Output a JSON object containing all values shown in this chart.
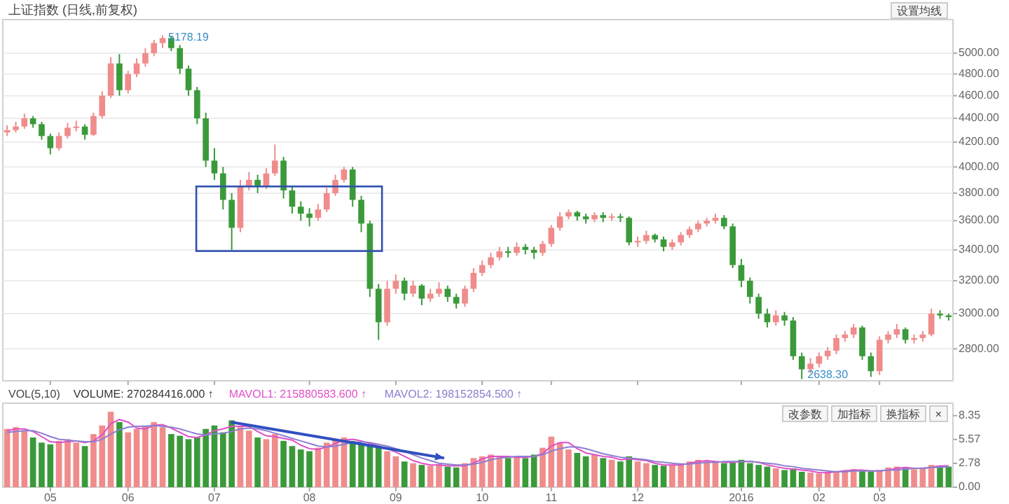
{
  "chart_data": [
    {
      "type": "candlestick",
      "title": "上证指数 (日线,前复权)",
      "log": true,
      "grid": "y",
      "tick_labels": "y",
      "ylim": [
        2630,
        5340
      ],
      "yticks": [
        {
          "value": 2800,
          "label": "2800.00"
        },
        {
          "value": 3000,
          "label": "3000.00"
        },
        {
          "value": 3200,
          "label": "3200.00"
        },
        {
          "value": 3400,
          "label": "3400.00"
        },
        {
          "value": 3600,
          "label": "3600.00"
        },
        {
          "value": 3800,
          "label": "3800.00"
        },
        {
          "value": 4000,
          "label": "4000.00"
        },
        {
          "value": 4200,
          "label": "4200.00"
        },
        {
          "value": 4400,
          "label": "4400.00"
        },
        {
          "value": 4600,
          "label": "4600.00"
        },
        {
          "value": 4800,
          "label": "4800.00"
        },
        {
          "value": 5000,
          "label": "5000.00"
        }
      ],
      "annotations": [
        "5178.19",
        "2638.30",
        "设置均线"
      ],
      "categories": [
        null,
        null,
        null,
        null,
        null,
        "05",
        null,
        null,
        null,
        null,
        null,
        null,
        null,
        null,
        "06",
        null,
        null,
        null,
        null,
        null,
        null,
        null,
        null,
        null,
        "07",
        null,
        null,
        null,
        null,
        null,
        null,
        null,
        null,
        null,
        null,
        "08",
        null,
        null,
        null,
        null,
        null,
        null,
        null,
        null,
        null,
        "09",
        null,
        null,
        null,
        null,
        null,
        null,
        null,
        null,
        null,
        "10",
        null,
        null,
        null,
        null,
        null,
        null,
        null,
        "11",
        null,
        null,
        null,
        null,
        null,
        null,
        null,
        null,
        null,
        "12",
        null,
        null,
        null,
        null,
        null,
        null,
        null,
        null,
        null,
        null,
        null,
        "2016",
        null,
        null,
        null,
        null,
        null,
        null,
        null,
        null,
        "02",
        null,
        null,
        null,
        null,
        null,
        null,
        "03",
        null,
        null,
        null,
        null,
        null,
        null,
        null,
        null
      ],
      "colors": [
        "#f08c8c",
        "#f08c8c",
        "#f08c8c",
        "#3a9a3a",
        "#3a9a3a",
        "#3a9a3a",
        "#f08c8c",
        "#f08c8c",
        "#f08c8c",
        "#3a9a3a",
        "#f08c8c",
        "#f08c8c",
        "#f08c8c",
        "#3a9a3a",
        "#f08c8c",
        "#f08c8c",
        "#f08c8c",
        "#f08c8c",
        "#f08c8c",
        "#3a9a3a",
        "#3a9a3a",
        "#3a9a3a",
        "#3a9a3a",
        "#3a9a3a",
        "#3a9a3a",
        "#3a9a3a",
        "#3a9a3a",
        "#f08c8c",
        "#f08c8c",
        "#3a9a3a",
        "#f08c8c",
        "#f08c8c",
        "#3a9a3a",
        "#3a9a3a",
        "#3a9a3a",
        "#3a9a3a",
        "#f08c8c",
        "#f08c8c",
        "#f08c8c",
        "#f08c8c",
        "#3a9a3a",
        "#3a9a3a",
        "#3a9a3a",
        "#3a9a3a",
        "#f08c8c",
        "#f08c8c",
        "#3a9a3a",
        "#f08c8c",
        "#3a9a3a",
        "#f08c8c",
        "#f08c8c",
        "#3a9a3a",
        "#3a9a3a",
        "#f08c8c",
        "#f08c8c",
        "#f08c8c",
        "#f08c8c",
        "#f08c8c",
        "#3a9a3a",
        "#f08c8c",
        "#3a9a3a",
        "#3a9a3a",
        "#f08c8c",
        "#f08c8c",
        "#f08c8c",
        "#f08c8c",
        "#3a9a3a",
        "#3a9a3a",
        "#f08c8c",
        "#3a9a3a",
        "#f08c8c",
        "#3a9a3a",
        "#3a9a3a",
        "#f08c8c",
        "#f08c8c",
        "#3a9a3a",
        "#3a9a3a",
        "#f08c8c",
        "#f08c8c",
        "#f08c8c",
        "#f08c8c",
        "#f08c8c",
        "#f08c8c",
        "#3a9a3a",
        "#3a9a3a",
        "#3a9a3a",
        "#3a9a3a",
        "#3a9a3a",
        "#3a9a3a",
        "#f08c8c",
        "#3a9a3a",
        "#3a9a3a",
        "#3a9a3a",
        "#f08c8c",
        "#f08c8c",
        "#f08c8c",
        "#f08c8c",
        "#f08c8c",
        "#f08c8c",
        "#3a9a3a",
        "#3a9a3a",
        "#f08c8c",
        "#f08c8c",
        "#f08c8c",
        "#3a9a3a",
        "#f08c8c",
        "#f08c8c",
        "#f08c8c",
        "#3a9a3a",
        "#3a9a3a"
      ],
      "ohlc": [
        [
          4280,
          4340,
          4250,
          4300
        ],
        [
          4300,
          4370,
          4280,
          4330
        ],
        [
          4330,
          4440,
          4310,
          4400
        ],
        [
          4400,
          4420,
          4320,
          4350
        ],
        [
          4350,
          4370,
          4220,
          4250
        ],
        [
          4250,
          4270,
          4100,
          4150
        ],
        [
          4150,
          4280,
          4130,
          4250
        ],
        [
          4250,
          4360,
          4230,
          4320
        ],
        [
          4320,
          4380,
          4290,
          4330
        ],
        [
          4330,
          4350,
          4220,
          4260
        ],
        [
          4260,
          4450,
          4250,
          4420
        ],
        [
          4420,
          4640,
          4400,
          4600
        ],
        [
          4600,
          4960,
          4580,
          4900
        ],
        [
          4900,
          4990,
          4600,
          4650
        ],
        [
          4650,
          4830,
          4620,
          4800
        ],
        [
          4800,
          4950,
          4770,
          4900
        ],
        [
          4900,
          5050,
          4870,
          5000
        ],
        [
          5000,
          5130,
          4970,
          5100
        ],
        [
          5100,
          5178.19,
          5050,
          5150
        ],
        [
          5150,
          5170,
          5020,
          5050
        ],
        [
          5050,
          5080,
          4800,
          4850
        ],
        [
          4850,
          4880,
          4600,
          4650
        ],
        [
          4650,
          4680,
          4350,
          4400
        ],
        [
          4400,
          4450,
          4000,
          4050
        ],
        [
          4050,
          4150,
          3900,
          3950
        ],
        [
          3950,
          4000,
          3680,
          3750
        ],
        [
          3750,
          3800,
          3400,
          3550
        ],
        [
          3550,
          3900,
          3520,
          3850
        ],
        [
          3850,
          3960,
          3820,
          3900
        ],
        [
          3900,
          3940,
          3800,
          3850
        ],
        [
          3850,
          3990,
          3830,
          3950
        ],
        [
          3950,
          4180,
          3930,
          4050
        ],
        [
          4050,
          4080,
          3760,
          3820
        ],
        [
          3820,
          3850,
          3650,
          3700
        ],
        [
          3700,
          3740,
          3600,
          3650
        ],
        [
          3650,
          3690,
          3560,
          3620
        ],
        [
          3620,
          3720,
          3600,
          3680
        ],
        [
          3680,
          3840,
          3660,
          3800
        ],
        [
          3800,
          3940,
          3780,
          3900
        ],
        [
          3900,
          4000,
          3880,
          3980
        ],
        [
          3980,
          4000,
          3700,
          3750
        ],
        [
          3750,
          3780,
          3520,
          3580
        ],
        [
          3580,
          3600,
          3100,
          3150
        ],
        [
          3150,
          3180,
          2850,
          2950
        ],
        [
          2950,
          3200,
          2930,
          3150
        ],
        [
          3150,
          3240,
          3120,
          3200
        ],
        [
          3200,
          3220,
          3080,
          3120
        ],
        [
          3120,
          3200,
          3100,
          3170
        ],
        [
          3170,
          3180,
          3050,
          3090
        ],
        [
          3090,
          3150,
          3070,
          3120
        ],
        [
          3120,
          3190,
          3100,
          3150
        ],
        [
          3150,
          3170,
          3070,
          3100
        ],
        [
          3100,
          3120,
          3030,
          3060
        ],
        [
          3060,
          3170,
          3040,
          3150
        ],
        [
          3150,
          3280,
          3130,
          3250
        ],
        [
          3250,
          3330,
          3230,
          3300
        ],
        [
          3300,
          3380,
          3280,
          3350
        ],
        [
          3350,
          3420,
          3330,
          3390
        ],
        [
          3390,
          3420,
          3350,
          3380
        ],
        [
          3380,
          3450,
          3360,
          3420
        ],
        [
          3420,
          3440,
          3370,
          3400
        ],
        [
          3400,
          3420,
          3340,
          3380
        ],
        [
          3380,
          3460,
          3360,
          3440
        ],
        [
          3440,
          3570,
          3420,
          3550
        ],
        [
          3550,
          3660,
          3530,
          3630
        ],
        [
          3630,
          3680,
          3610,
          3660
        ],
        [
          3660,
          3670,
          3600,
          3630
        ],
        [
          3630,
          3650,
          3580,
          3610
        ],
        [
          3610,
          3660,
          3590,
          3640
        ],
        [
          3640,
          3660,
          3590,
          3620
        ],
        [
          3620,
          3650,
          3600,
          3630
        ],
        [
          3630,
          3650,
          3590,
          3620
        ],
        [
          3620,
          3630,
          3430,
          3450
        ],
        [
          3450,
          3490,
          3420,
          3460
        ],
        [
          3460,
          3530,
          3440,
          3500
        ],
        [
          3500,
          3510,
          3450,
          3470
        ],
        [
          3470,
          3490,
          3390,
          3420
        ],
        [
          3420,
          3470,
          3400,
          3450
        ],
        [
          3450,
          3520,
          3430,
          3500
        ],
        [
          3500,
          3560,
          3480,
          3540
        ],
        [
          3540,
          3600,
          3520,
          3580
        ],
        [
          3580,
          3620,
          3560,
          3600
        ],
        [
          3600,
          3650,
          3580,
          3620
        ],
        [
          3620,
          3640,
          3540,
          3560
        ],
        [
          3560,
          3580,
          3280,
          3300
        ],
        [
          3300,
          3340,
          3160,
          3200
        ],
        [
          3200,
          3220,
          3060,
          3100
        ],
        [
          3100,
          3120,
          2970,
          3000
        ],
        [
          3000,
          3030,
          2920,
          2950
        ],
        [
          2950,
          3020,
          2930,
          2990
        ],
        [
          2990,
          3010,
          2930,
          2960
        ],
        [
          2960,
          2980,
          2740,
          2760
        ],
        [
          2760,
          2780,
          2638.3,
          2690
        ],
        [
          2690,
          2750,
          2670,
          2720
        ],
        [
          2720,
          2780,
          2700,
          2760
        ],
        [
          2760,
          2810,
          2740,
          2790
        ],
        [
          2790,
          2880,
          2770,
          2860
        ],
        [
          2860,
          2900,
          2840,
          2880
        ],
        [
          2880,
          2940,
          2860,
          2920
        ],
        [
          2920,
          2930,
          2740,
          2760
        ],
        [
          2760,
          2780,
          2650,
          2680
        ],
        [
          2680,
          2870,
          2660,
          2850
        ],
        [
          2850,
          2900,
          2830,
          2880
        ],
        [
          2880,
          2940,
          2860,
          2910
        ],
        [
          2910,
          2920,
          2830,
          2850
        ],
        [
          2850,
          2880,
          2830,
          2860
        ],
        [
          2860,
          2900,
          2840,
          2880
        ],
        [
          2880,
          3030,
          2870,
          3000
        ],
        [
          3000,
          3020,
          2970,
          2990
        ],
        [
          2990,
          3000,
          2960,
          2980
        ]
      ]
    },
    {
      "type": "bar",
      "grid": false,
      "legend": "top left",
      "ylim": [
        0,
        9.8
      ],
      "yticks": [
        {
          "value": 0,
          "label": "0.00"
        },
        {
          "value": 2.78,
          "label": "2.78"
        },
        {
          "value": 5.57,
          "label": "5.57"
        },
        {
          "value": 8.35,
          "label": "8.35"
        }
      ],
      "annotations": [
        "VOL(5,10)",
        "改参数",
        "加指标",
        "换指标",
        "×"
      ],
      "categories": [
        null,
        null,
        null,
        null,
        null,
        "05",
        null,
        null,
        null,
        null,
        null,
        null,
        null,
        null,
        "06",
        null,
        null,
        null,
        null,
        null,
        null,
        null,
        null,
        null,
        "07",
        null,
        null,
        null,
        null,
        null,
        null,
        null,
        null,
        null,
        null,
        "08",
        null,
        null,
        null,
        null,
        null,
        null,
        null,
        null,
        null,
        "09",
        null,
        null,
        null,
        null,
        null,
        null,
        null,
        null,
        null,
        "10",
        null,
        null,
        null,
        null,
        null,
        null,
        null,
        "11",
        null,
        null,
        null,
        null,
        null,
        null,
        null,
        null,
        null,
        "12",
        null,
        null,
        null,
        null,
        null,
        null,
        null,
        null,
        null,
        null,
        null,
        "2016",
        null,
        null,
        null,
        null,
        null,
        null,
        null,
        null,
        "02",
        null,
        null,
        null,
        null,
        null,
        null,
        "03",
        null,
        null,
        null,
        null,
        null,
        null,
        null,
        null
      ],
      "series": [
        {
          "name": "VOLUME: 270284416.000 ↑",
          "color": "#333333",
          "colors": [
            "#f08c8c",
            "#f08c8c",
            "#f08c8c",
            "#3a9a3a",
            "#3a9a3a",
            "#3a9a3a",
            "#f08c8c",
            "#f08c8c",
            "#f08c8c",
            "#3a9a3a",
            "#f08c8c",
            "#f08c8c",
            "#f08c8c",
            "#3a9a3a",
            "#f08c8c",
            "#f08c8c",
            "#f08c8c",
            "#f08c8c",
            "#f08c8c",
            "#3a9a3a",
            "#3a9a3a",
            "#3a9a3a",
            "#3a9a3a",
            "#3a9a3a",
            "#3a9a3a",
            "#3a9a3a",
            "#3a9a3a",
            "#f08c8c",
            "#f08c8c",
            "#3a9a3a",
            "#f08c8c",
            "#f08c8c",
            "#3a9a3a",
            "#3a9a3a",
            "#3a9a3a",
            "#3a9a3a",
            "#f08c8c",
            "#f08c8c",
            "#f08c8c",
            "#f08c8c",
            "#3a9a3a",
            "#3a9a3a",
            "#3a9a3a",
            "#3a9a3a",
            "#f08c8c",
            "#f08c8c",
            "#3a9a3a",
            "#f08c8c",
            "#3a9a3a",
            "#f08c8c",
            "#f08c8c",
            "#3a9a3a",
            "#3a9a3a",
            "#f08c8c",
            "#f08c8c",
            "#f08c8c",
            "#f08c8c",
            "#f08c8c",
            "#3a9a3a",
            "#f08c8c",
            "#3a9a3a",
            "#3a9a3a",
            "#f08c8c",
            "#f08c8c",
            "#f08c8c",
            "#f08c8c",
            "#3a9a3a",
            "#3a9a3a",
            "#f08c8c",
            "#3a9a3a",
            "#f08c8c",
            "#3a9a3a",
            "#3a9a3a",
            "#f08c8c",
            "#f08c8c",
            "#3a9a3a",
            "#3a9a3a",
            "#f08c8c",
            "#f08c8c",
            "#f08c8c",
            "#f08c8c",
            "#f08c8c",
            "#f08c8c",
            "#3a9a3a",
            "#3a9a3a",
            "#3a9a3a",
            "#3a9a3a",
            "#3a9a3a",
            "#3a9a3a",
            "#f08c8c",
            "#3a9a3a",
            "#3a9a3a",
            "#3a9a3a",
            "#f08c8c",
            "#f08c8c",
            "#f08c8c",
            "#f08c8c",
            "#f08c8c",
            "#f08c8c",
            "#3a9a3a",
            "#3a9a3a",
            "#f08c8c",
            "#f08c8c",
            "#f08c8c",
            "#3a9a3a",
            "#f08c8c",
            "#f08c8c",
            "#f08c8c",
            "#3a9a3a",
            "#3a9a3a"
          ],
          "values": [
            6.8,
            7.0,
            6.6,
            5.8,
            5.2,
            5.0,
            5.4,
            5.6,
            5.2,
            4.8,
            6.2,
            7.2,
            8.8,
            7.6,
            6.4,
            6.8,
            7.2,
            7.6,
            7.0,
            6.2,
            6.0,
            5.6,
            5.8,
            6.8,
            7.2,
            6.4,
            7.8,
            7.0,
            6.6,
            5.8,
            5.6,
            6.2,
            5.4,
            4.8,
            4.4,
            4.2,
            4.6,
            5.2,
            5.6,
            5.8,
            5.4,
            5.0,
            4.8,
            4.6,
            4.2,
            3.6,
            3.0,
            2.8,
            2.6,
            2.5,
            2.7,
            2.4,
            2.3,
            2.8,
            3.4,
            3.6,
            3.8,
            3.5,
            3.4,
            3.6,
            3.4,
            3.8,
            4.6,
            5.9,
            5.2,
            4.4,
            4.0,
            3.6,
            3.8,
            3.4,
            3.2,
            3.0,
            3.6,
            3.0,
            2.8,
            2.6,
            2.5,
            2.6,
            2.8,
            3.0,
            3.2,
            3.0,
            2.9,
            2.8,
            3.0,
            3.2,
            2.8,
            2.6,
            2.4,
            2.2,
            2.0,
            2.2,
            1.8,
            1.7,
            1.6,
            1.8,
            1.9,
            2.0,
            2.1,
            1.9,
            1.8,
            2.0,
            2.3,
            2.4,
            2.2,
            2.1,
            2.3,
            2.6,
            2.5,
            2.4
          ]
        },
        {
          "name": "MAVOL1: 215880583.600 ↑",
          "type": "line",
          "color": "#e050c8",
          "values": [
            6.6,
            6.8,
            6.8,
            6.5,
            5.9,
            5.3,
            5.2,
            5.3,
            5.4,
            5.2,
            5.4,
            6.1,
            7.4,
            7.9,
            7.6,
            6.9,
            6.8,
            7.2,
            7.3,
            6.9,
            6.4,
            5.9,
            5.8,
            6.1,
            6.6,
            6.8,
            7.1,
            7.1,
            7.1,
            6.5,
            6.0,
            5.9,
            5.7,
            5.5,
            4.9,
            4.5,
            4.4,
            4.7,
            5.1,
            5.5,
            5.6,
            5.4,
            5.1,
            4.8,
            4.5,
            4.1,
            3.6,
            3.1,
            2.8,
            2.6,
            2.6,
            2.5,
            2.5,
            2.5,
            2.8,
            3.3,
            3.6,
            3.6,
            3.6,
            3.5,
            3.5,
            3.6,
            3.9,
            4.8,
            5.2,
            5.2,
            4.5,
            4.0,
            3.8,
            3.6,
            3.5,
            3.2,
            3.3,
            3.2,
            3.1,
            2.8,
            2.6,
            2.6,
            2.6,
            2.8,
            3.0,
            3.1,
            3.0,
            2.9,
            2.9,
            3.0,
            3.0,
            2.9,
            2.6,
            2.4,
            2.2,
            2.1,
            2.0,
            1.9,
            1.7,
            1.7,
            1.8,
            1.9,
            2.0,
            2.0,
            1.9,
            1.9,
            2.0,
            2.2,
            2.3,
            2.2,
            2.2,
            2.3,
            2.5,
            2.5
          ]
        },
        {
          "name": "MAVOL2: 198152854.500 ↑",
          "type": "line",
          "color": "#8c7fd0",
          "values": [
            6.4,
            6.5,
            6.6,
            6.6,
            6.3,
            5.9,
            5.6,
            5.5,
            5.4,
            5.3,
            5.3,
            5.6,
            6.2,
            6.7,
            7.0,
            7.1,
            7.1,
            7.2,
            7.1,
            7.0,
            6.8,
            6.5,
            6.2,
            6.1,
            6.2,
            6.3,
            6.5,
            6.8,
            6.9,
            6.8,
            6.6,
            6.3,
            6.0,
            5.7,
            5.4,
            5.1,
            4.8,
            4.7,
            4.8,
            5.0,
            5.2,
            5.3,
            5.2,
            5.0,
            4.8,
            4.5,
            4.2,
            3.8,
            3.4,
            3.1,
            2.8,
            2.7,
            2.6,
            2.6,
            2.7,
            2.9,
            3.2,
            3.4,
            3.5,
            3.6,
            3.6,
            3.6,
            3.8,
            4.2,
            4.5,
            4.7,
            4.7,
            4.5,
            4.2,
            3.9,
            3.7,
            3.5,
            3.4,
            3.3,
            3.2,
            3.0,
            2.9,
            2.8,
            2.7,
            2.7,
            2.8,
            2.9,
            2.9,
            3.0,
            3.0,
            3.0,
            3.0,
            2.9,
            2.8,
            2.7,
            2.5,
            2.4,
            2.2,
            2.1,
            2.0,
            1.9,
            1.8,
            1.8,
            1.9,
            1.9,
            1.9,
            1.9,
            2.0,
            2.0,
            2.1,
            2.2,
            2.2,
            2.3,
            2.3,
            2.4
          ]
        }
      ]
    }
  ]
}
